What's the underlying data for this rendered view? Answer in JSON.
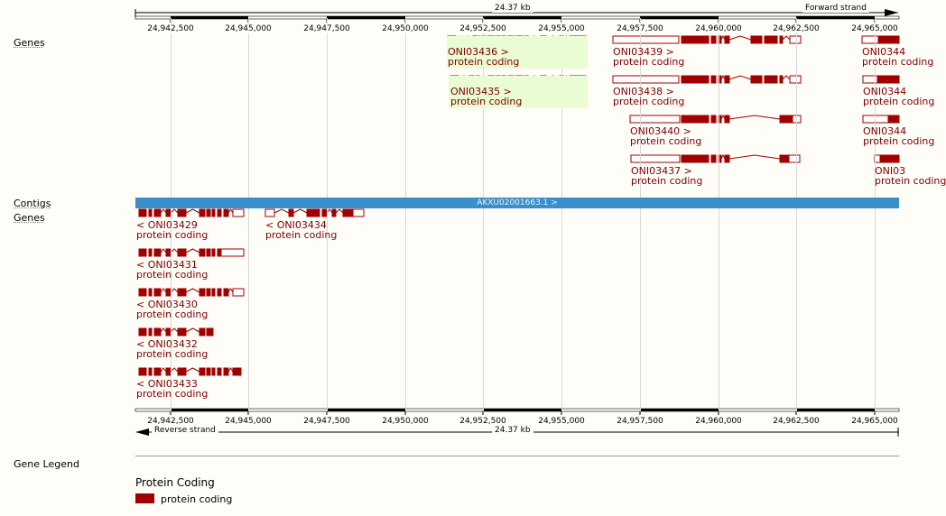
{
  "ruler": {
    "length_label": "24.37 kb",
    "forward_strand": "Forward strand",
    "reverse_strand": "Reverse strand",
    "ticks": [
      "24,942,500",
      "24,945,000",
      "24,947,500",
      "24,950,000",
      "24,952,500",
      "24,955,000",
      "24,957,500",
      "24,960,000",
      "24,962,500",
      "24,965,000"
    ]
  },
  "tracks": {
    "genes_forward": "Genes",
    "contigs": "Contigs",
    "genes_reverse": "Genes"
  },
  "contig": {
    "label": "AKXU02001663.1 >"
  },
  "genes_forward": [
    {
      "id": "ONI03436 >",
      "biotype": "protein coding",
      "highlight": true
    },
    {
      "id": "ONI03435 >",
      "biotype": "protein coding",
      "highlight": true
    },
    {
      "id": "ONI03439 >",
      "biotype": "protein coding"
    },
    {
      "id": "ONI03438 >",
      "biotype": "protein coding"
    },
    {
      "id": "ONI03440 >",
      "biotype": "protein coding"
    },
    {
      "id": "ONI03437 >",
      "biotype": "protein coding"
    },
    {
      "id": "ONI0344",
      "biotype": "protein coding"
    },
    {
      "id": "ONI0344",
      "biotype": "protein coding"
    },
    {
      "id": "ONI0344",
      "biotype": "protein coding"
    },
    {
      "id": "ONI03",
      "biotype": "protein coding"
    }
  ],
  "genes_reverse": [
    {
      "id": "< ONI03429",
      "biotype": "protein coding"
    },
    {
      "id": "< ONI03434",
      "biotype": "protein coding"
    },
    {
      "id": "< ONI03431",
      "biotype": "protein coding"
    },
    {
      "id": "< ONI03430",
      "biotype": "protein coding"
    },
    {
      "id": "< ONI03432",
      "biotype": "protein coding"
    },
    {
      "id": "< ONI03433",
      "biotype": "protein coding"
    }
  ],
  "legend": {
    "title": "Gene Legend",
    "heading": "Protein Coding",
    "item_label": "protein coding",
    "item_color": "#a00000"
  }
}
